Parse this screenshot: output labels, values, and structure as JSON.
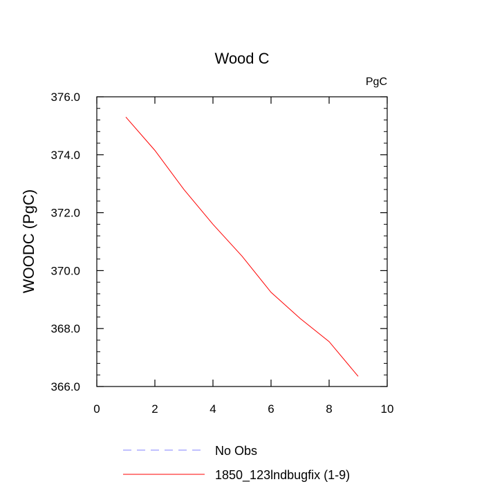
{
  "chart_data": {
    "type": "line",
    "title": "Wood C",
    "units_label": "PgC",
    "ylabel": "WOODC  (PgC)",
    "xlabel": "",
    "xlim": [
      0,
      10
    ],
    "ylim": [
      366,
      376
    ],
    "x_ticks": [
      "0",
      "2",
      "4",
      "6",
      "8",
      "10"
    ],
    "y_ticks": [
      "366.0",
      "368.0",
      "370.0",
      "372.0",
      "374.0",
      "376.0"
    ],
    "grid": false,
    "series": [
      {
        "name": "1850_123lndbugfix (1-9)",
        "color": "#ff0000",
        "style": "solid",
        "x": [
          1,
          2,
          3,
          4,
          5,
          6,
          7,
          8,
          9
        ],
        "y": [
          375.3,
          374.15,
          372.8,
          371.6,
          370.5,
          369.25,
          368.35,
          367.55,
          366.35
        ]
      }
    ],
    "legend": {
      "placement": "bottom",
      "entries": [
        {
          "label": "No Obs",
          "color": "#8080ff",
          "style": "dashed"
        },
        {
          "label": "1850_123lndbugfix (1-9)",
          "color": "#ff0000",
          "style": "solid"
        }
      ]
    }
  }
}
